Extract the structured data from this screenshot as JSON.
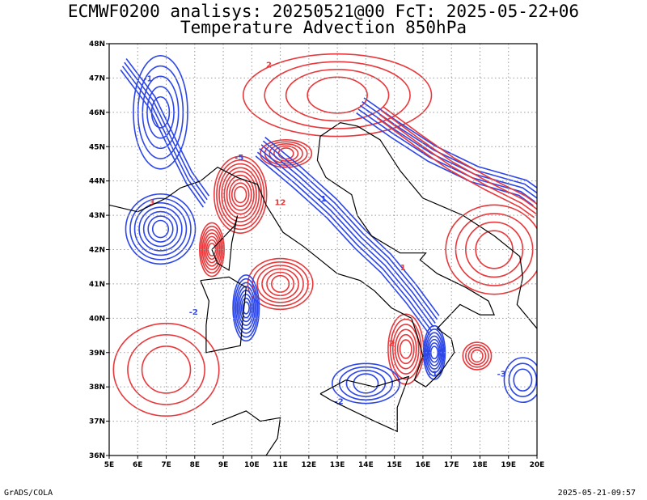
{
  "title_line1": "ECMWF0200 analisys: 20250521@00 FcT: 2025-05-22+06",
  "title_line2": "Temperature Advection 850hPa",
  "footer_left": "GrADS/COLA",
  "footer_right": "2025-05-21-09:57",
  "map": {
    "lon_range": [
      5,
      20
    ],
    "lat_range": [
      36,
      48
    ],
    "lon_labels": [
      "5E",
      "6E",
      "7E",
      "8E",
      "9E",
      "10E",
      "11E",
      "12E",
      "13E",
      "14E",
      "15E",
      "16E",
      "17E",
      "18E",
      "19E",
      "20E"
    ],
    "lat_labels": [
      "36N",
      "37N",
      "38N",
      "39N",
      "40N",
      "41N",
      "42N",
      "43N",
      "44N",
      "45N",
      "46N",
      "47N",
      "48N"
    ],
    "grid": "dotted",
    "colors": {
      "warm_advection": "#e8383b",
      "cold_advection": "#2c46e8",
      "coastline": "#000000",
      "grid": "#9a9a9a"
    },
    "contour_labels_sample": [
      "-1",
      "-2",
      "-3",
      "1",
      "2",
      "3",
      "12",
      "-5"
    ]
  }
}
